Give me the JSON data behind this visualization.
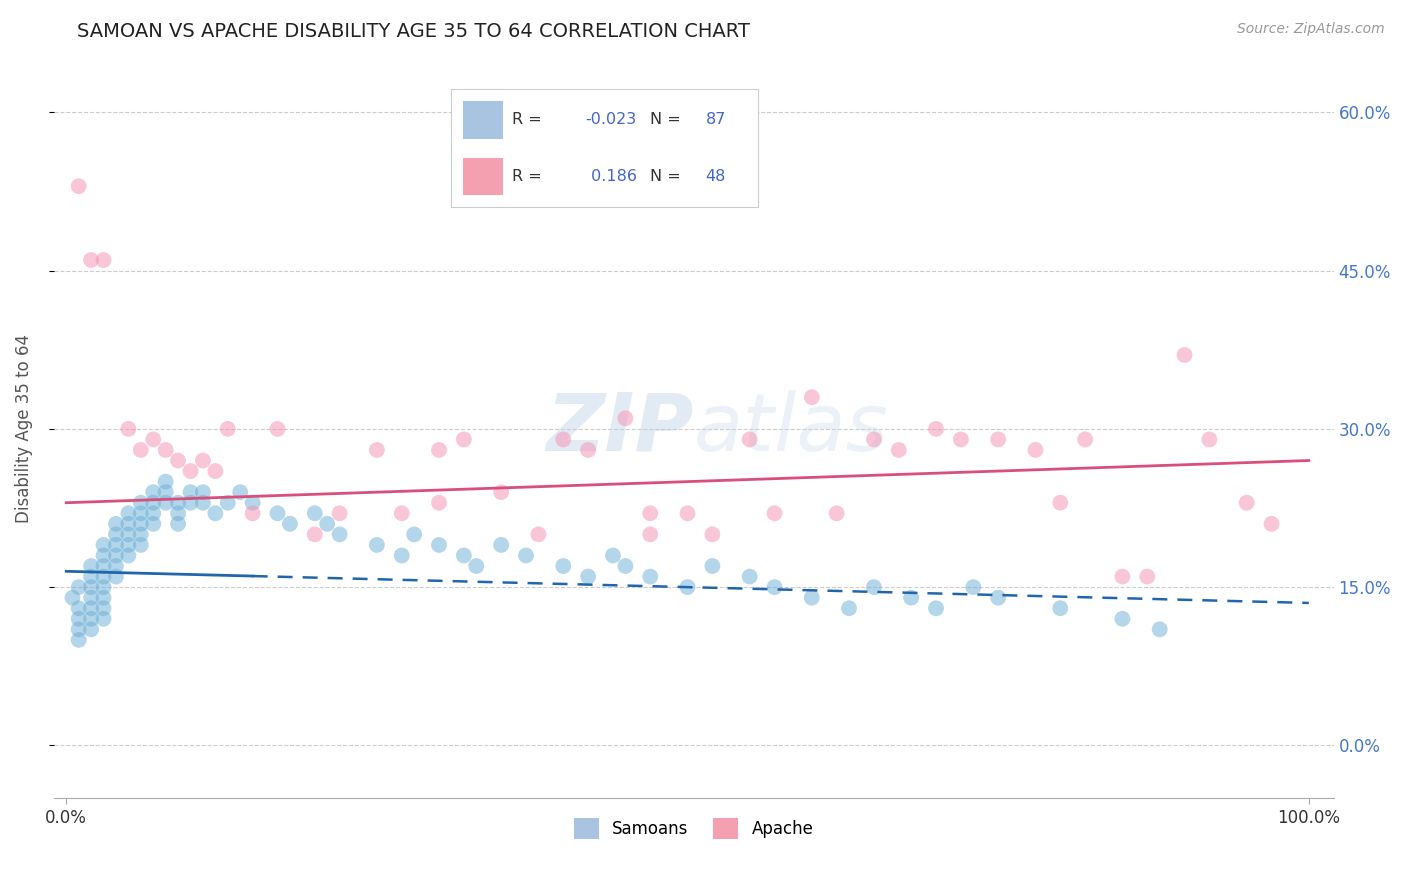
{
  "title": "SAMOAN VS APACHE DISABILITY AGE 35 TO 64 CORRELATION CHART",
  "source": "Source: ZipAtlas.com",
  "ylabel": "Disability Age 35 to 64",
  "samoan_color": "#6baed6",
  "apache_color": "#f48fb1",
  "samoan_line_color": "#2166ac",
  "apache_line_color": "#d94f7a",
  "legend_box_samoan": "#a8c4e0",
  "legend_box_apache": "#f4a0b0",
  "background_color": "#ffffff",
  "grid_color": "#cccccc",
  "right_tick_color": "#4477cc",
  "title_fontsize": 14,
  "watermark_color": "#c8d8ee",
  "samoan_x": [
    0.5,
    1,
    1,
    1,
    1,
    1,
    2,
    2,
    2,
    2,
    2,
    2,
    2,
    3,
    3,
    3,
    3,
    3,
    3,
    3,
    3,
    4,
    4,
    4,
    4,
    4,
    4,
    5,
    5,
    5,
    5,
    5,
    6,
    6,
    6,
    6,
    6,
    7,
    7,
    7,
    7,
    8,
    8,
    8,
    9,
    9,
    9,
    10,
    10,
    11,
    11,
    12,
    13,
    14,
    15,
    17,
    18,
    20,
    21,
    22,
    25,
    27,
    28,
    30,
    32,
    33,
    35,
    37,
    40,
    42,
    44,
    45,
    47,
    50,
    52,
    55,
    57,
    60,
    63,
    65,
    68,
    70,
    73,
    75,
    80,
    85,
    88
  ],
  "samoan_y": [
    14,
    15,
    13,
    12,
    11,
    10,
    17,
    16,
    15,
    14,
    13,
    12,
    11,
    19,
    18,
    17,
    16,
    15,
    14,
    13,
    12,
    21,
    20,
    19,
    18,
    17,
    16,
    22,
    21,
    20,
    19,
    18,
    23,
    22,
    21,
    20,
    19,
    24,
    23,
    22,
    21,
    25,
    24,
    23,
    23,
    22,
    21,
    24,
    23,
    24,
    23,
    22,
    23,
    24,
    23,
    22,
    21,
    22,
    21,
    20,
    19,
    18,
    20,
    19,
    18,
    17,
    19,
    18,
    17,
    16,
    18,
    17,
    16,
    15,
    17,
    16,
    15,
    14,
    13,
    15,
    14,
    13,
    15,
    14,
    13,
    12,
    11
  ],
  "apache_x": [
    1,
    2,
    3,
    5,
    6,
    7,
    8,
    9,
    10,
    11,
    12,
    13,
    15,
    17,
    20,
    22,
    25,
    27,
    30,
    32,
    35,
    38,
    40,
    42,
    45,
    47,
    50,
    52,
    55,
    57,
    60,
    62,
    65,
    67,
    70,
    72,
    75,
    78,
    80,
    82,
    85,
    87,
    90,
    92,
    95,
    97,
    30,
    47
  ],
  "apache_y": [
    53,
    46,
    46,
    30,
    28,
    29,
    28,
    27,
    26,
    27,
    26,
    30,
    22,
    30,
    20,
    22,
    28,
    22,
    28,
    29,
    24,
    20,
    29,
    28,
    31,
    20,
    22,
    20,
    29,
    22,
    33,
    22,
    29,
    28,
    30,
    29,
    29,
    28,
    23,
    29,
    16,
    16,
    37,
    29,
    23,
    21,
    23,
    22
  ],
  "samoan_line_x0": 0,
  "samoan_line_y0": 16.5,
  "samoan_line_x1": 100,
  "samoan_line_y1": 13.5,
  "samoan_solid_end": 15,
  "apache_line_x0": 0,
  "apache_line_y0": 23,
  "apache_line_x1": 100,
  "apache_line_y1": 27,
  "yticks": [
    0,
    15,
    30,
    45,
    60
  ],
  "xticks": [
    0,
    100
  ],
  "xlim_min": -1,
  "xlim_max": 102,
  "ylim_min": -5,
  "ylim_max": 65
}
